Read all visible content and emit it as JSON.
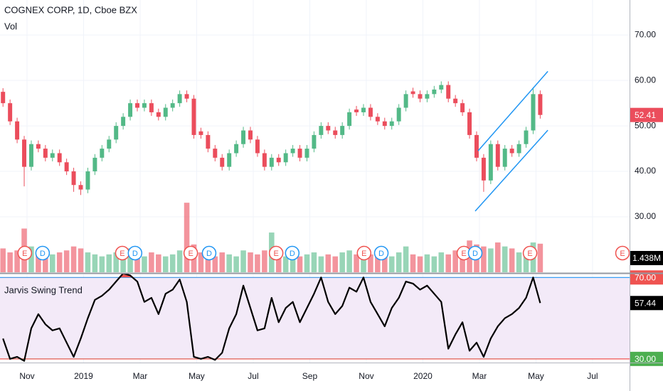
{
  "chart_data": {
    "type": "candlestick",
    "title": "COGNEX CORP, 1D, Cboe BZX",
    "xlim": [
      -0.956,
      21.31
    ],
    "xticks": [
      {
        "value": 0,
        "label": "Nov"
      },
      {
        "value": 2,
        "label": "2019"
      },
      {
        "value": 4,
        "label": "Mar"
      },
      {
        "value": 6,
        "label": "May"
      },
      {
        "value": 8,
        "label": "Jul"
      },
      {
        "value": 10,
        "label": "Sep"
      },
      {
        "value": 12,
        "label": "Nov"
      },
      {
        "value": 14,
        "label": "2020"
      },
      {
        "value": 16,
        "label": "Mar"
      },
      {
        "value": 18,
        "label": "May"
      },
      {
        "value": 20,
        "label": "Jul"
      }
    ],
    "ylim": [
      17.8,
      77.7
    ],
    "yticks": [
      {
        "value": 30,
        "label": "30.00"
      },
      {
        "value": 40,
        "label": "40.00"
      },
      {
        "value": 50,
        "label": "50.00"
      },
      {
        "value": 60,
        "label": "60.00"
      },
      {
        "value": 70,
        "label": "70.00"
      }
    ],
    "grid": true,
    "up_color": "#53b987",
    "down_color": "#eb4d5c",
    "x": [
      -0.85,
      -0.6,
      -0.35,
      -0.1,
      0.15,
      0.4,
      0.65,
      0.9,
      1.15,
      1.4,
      1.65,
      1.9,
      2.15,
      2.4,
      2.65,
      2.9,
      3.15,
      3.4,
      3.65,
      3.9,
      4.15,
      4.4,
      4.65,
      4.9,
      5.15,
      5.4,
      5.65,
      5.9,
      6.15,
      6.4,
      6.65,
      6.9,
      7.15,
      7.4,
      7.65,
      7.9,
      8.15,
      8.4,
      8.65,
      8.9,
      9.15,
      9.4,
      9.65,
      9.9,
      10.15,
      10.4,
      10.65,
      10.9,
      11.15,
      11.4,
      11.65,
      11.9,
      12.15,
      12.4,
      12.65,
      12.9,
      13.15,
      13.4,
      13.65,
      13.9,
      14.15,
      14.4,
      14.65,
      14.9,
      15.15,
      15.4,
      15.65,
      15.9,
      16.15,
      16.4,
      16.65,
      16.9,
      17.15,
      17.4,
      17.65,
      17.9,
      18.15
    ],
    "open": [
      57.5,
      55,
      51,
      47,
      41,
      46,
      45,
      43,
      44,
      42,
      40,
      37,
      36,
      40,
      43,
      45,
      47,
      50,
      52,
      55,
      54,
      55,
      53,
      52,
      54,
      55,
      57,
      56,
      48.8,
      48,
      45,
      43,
      41,
      44,
      46,
      49,
      47,
      44,
      41,
      43,
      42,
      44,
      45,
      43,
      45,
      48,
      50,
      49,
      48,
      50,
      53.6,
      53,
      54,
      52,
      51,
      50,
      51,
      54,
      57.6,
      57,
      56,
      57,
      58,
      59,
      56,
      55,
      53,
      48,
      43,
      38,
      46,
      41,
      45,
      44,
      46,
      49,
      57
    ],
    "high": [
      58.3,
      55.8,
      51.8,
      47.8,
      46.8,
      46.8,
      45.8,
      44.8,
      44.8,
      42.8,
      40.8,
      37.8,
      40.8,
      43.8,
      45.8,
      47.8,
      50.8,
      52.8,
      55.8,
      55.8,
      55.8,
      55.8,
      53.8,
      54.8,
      55.8,
      57.8,
      57.8,
      56.8,
      49.6,
      48.8,
      45.8,
      43.8,
      44.8,
      46.8,
      49.8,
      49.8,
      47.8,
      44.8,
      43.8,
      43.8,
      44.8,
      45.8,
      45.8,
      45.8,
      48.8,
      50.8,
      50.8,
      49.8,
      50.8,
      53.8,
      54.4,
      54.8,
      54.8,
      52.8,
      51.8,
      51.8,
      54.8,
      57.8,
      58.4,
      57.8,
      57.8,
      58.8,
      59.8,
      59.8,
      56.8,
      55.8,
      53.8,
      48.8,
      43.8,
      46.8,
      46.8,
      45.8,
      45.8,
      46.8,
      49.8,
      58.5,
      57.8
    ],
    "low": [
      54.2,
      50.2,
      46.2,
      36.7,
      40.2,
      44.2,
      42.2,
      42.2,
      41.2,
      39.2,
      35.5,
      34.8,
      35.2,
      39.2,
      42.2,
      44.2,
      46.2,
      49.2,
      51.2,
      53.2,
      53.2,
      52.2,
      51.2,
      51.2,
      53.2,
      54.2,
      55.2,
      47.2,
      47.2,
      44.2,
      42.2,
      40.2,
      40.2,
      43.2,
      45.2,
      46.2,
      43.2,
      40.2,
      40.2,
      41.2,
      41.2,
      43.2,
      42.2,
      42.2,
      44.2,
      47.2,
      48.2,
      47.2,
      47.2,
      49.2,
      52.2,
      52.2,
      51.2,
      50.2,
      49.2,
      49.2,
      50.2,
      53.2,
      56.2,
      55.2,
      55.2,
      56.2,
      57.2,
      55.2,
      54.2,
      52.2,
      47.2,
      42.2,
      35.5,
      37.2,
      40.2,
      40.2,
      43.2,
      43.2,
      45.2,
      48.2,
      51.6
    ],
    "close": [
      55,
      51,
      47,
      41,
      46,
      45,
      43,
      44,
      42,
      40,
      37,
      36,
      40,
      43,
      45,
      47,
      50,
      52,
      55,
      54,
      55,
      53,
      52,
      54,
      55,
      57,
      56,
      48,
      48,
      45,
      43,
      41,
      44,
      46,
      49,
      47,
      44,
      41,
      43,
      42,
      44,
      45,
      43,
      45,
      48,
      50,
      49,
      48,
      50,
      53,
      53,
      54,
      52,
      51,
      50,
      51,
      54,
      57,
      57,
      56,
      57,
      58,
      59,
      56,
      55,
      53,
      48,
      43,
      38,
      46,
      41,
      45,
      44,
      46,
      49,
      57,
      52.41
    ],
    "volume": {
      "name": "Vol",
      "ylim": [
        0,
        13.7
      ],
      "last_value_label": "1.438M",
      "values": [
        1.2,
        1.0,
        1.1,
        2.2,
        1.3,
        0.9,
        0.8,
        0.9,
        1.0,
        1.1,
        1.3,
        1.2,
        1.0,
        0.9,
        0.8,
        0.9,
        1.0,
        0.8,
        1.2,
        0.9,
        0.8,
        1.0,
        0.9,
        0.8,
        0.9,
        1.1,
        3.5,
        1.4,
        1.0,
        0.9,
        0.8,
        1.0,
        0.9,
        0.8,
        1.1,
        1.0,
        0.9,
        1.1,
        2.0,
        1.0,
        0.8,
        0.9,
        0.8,
        0.9,
        1.0,
        0.8,
        0.9,
        0.8,
        1.0,
        1.1,
        0.9,
        0.8,
        0.9,
        0.8,
        0.9,
        0.8,
        1.0,
        1.3,
        0.9,
        0.8,
        0.9,
        0.8,
        1.0,
        0.9,
        1.1,
        1.2,
        1.6,
        1.4,
        1.3,
        1.2,
        1.5,
        1.3,
        1.2,
        1.0,
        1.1,
        1.5,
        1.438
      ]
    },
    "events": [
      {
        "x": -0.08,
        "label": "E",
        "color": "#ef5350"
      },
      {
        "x": 0.55,
        "label": "D",
        "color": "#2196f3"
      },
      {
        "x": 3.37,
        "label": "E",
        "color": "#ef5350"
      },
      {
        "x": 3.82,
        "label": "D",
        "color": "#2196f3"
      },
      {
        "x": 5.79,
        "label": "E",
        "color": "#ef5350"
      },
      {
        "x": 6.44,
        "label": "D",
        "color": "#2196f3"
      },
      {
        "x": 8.81,
        "label": "E",
        "color": "#ef5350"
      },
      {
        "x": 9.38,
        "label": "D",
        "color": "#2196f3"
      },
      {
        "x": 11.92,
        "label": "E",
        "color": "#ef5350"
      },
      {
        "x": 12.53,
        "label": "D",
        "color": "#2196f3"
      },
      {
        "x": 15.45,
        "label": "E",
        "color": "#ef5350"
      },
      {
        "x": 15.85,
        "label": "D",
        "color": "#2196f3"
      },
      {
        "x": 17.79,
        "label": "E",
        "color": "#ef5350"
      },
      {
        "x": 21.06,
        "label": "E",
        "color": "#ef5350"
      }
    ],
    "trend_lines": [
      {
        "x": [
          15.85,
          18.42
        ],
        "y": [
          31.25,
          49.06
        ],
        "color": "#2196f3"
      },
      {
        "x": [
          15.95,
          18.42
        ],
        "y": [
          44.5,
          62.0
        ],
        "color": "#2196f3"
      }
    ],
    "indicator": {
      "name": "Jarvis Swing Trend",
      "ylim": [
        28.2,
        71.5
      ],
      "line_color": "#000000",
      "band_color": "#f3eaf8",
      "yticks": [
        {
          "value": 30,
          "label": "30.00"
        },
        {
          "value": 70,
          "label": "70.00"
        }
      ],
      "level_line_colors": [
        "#ef5350",
        "#2196f3"
      ],
      "fill_colors": [
        "#4caf50",
        "#ef5350"
      ],
      "values": [
        40,
        30,
        31,
        29,
        45,
        52,
        47,
        44,
        45,
        38,
        31,
        40,
        50,
        59,
        61,
        64,
        68,
        72,
        71,
        68,
        58,
        60,
        52,
        62,
        64,
        69,
        58,
        31,
        30,
        31,
        29.5,
        33,
        45,
        52,
        66,
        55,
        44,
        45,
        60,
        48,
        55,
        58,
        48,
        55,
        62,
        70,
        58,
        52,
        56,
        65,
        63,
        70,
        58,
        52,
        46,
        55,
        60,
        68,
        67,
        64,
        66,
        62,
        58,
        35,
        42,
        48,
        34,
        38,
        31,
        40,
        46,
        50,
        52,
        55,
        60,
        70,
        57.44
      ]
    }
  }
}
